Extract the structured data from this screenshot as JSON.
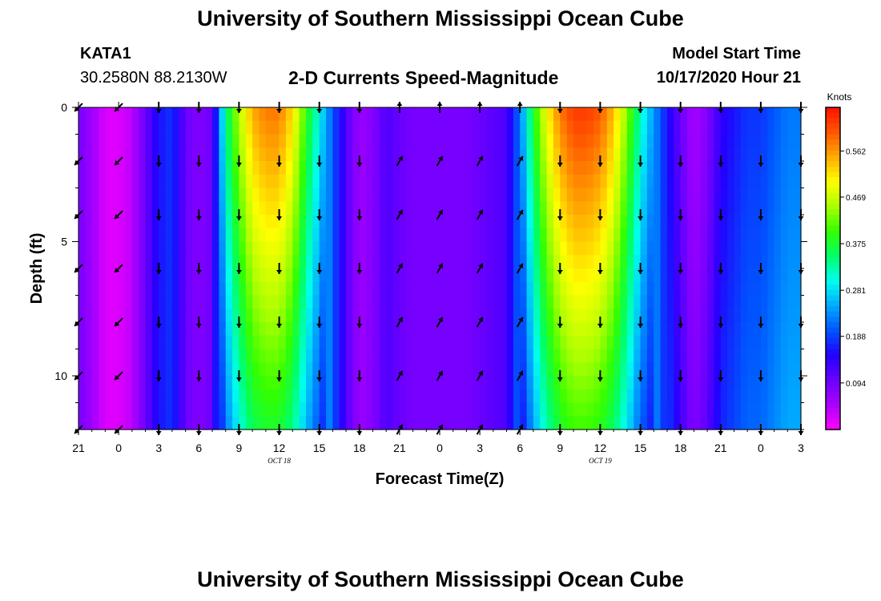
{
  "header": {
    "title": "University of Southern Mississippi Ocean Cube",
    "station_id": "KATA1",
    "station_coords": "30.2580N 88.2130W",
    "product": "2-D Currents Speed-Magnitude",
    "model_start_label": "Model Start Time",
    "model_start_value": "10/17/2020 Hour 21"
  },
  "footer": {
    "title": "University of Southern Mississippi Ocean Cube"
  },
  "chart_data": {
    "type": "heatmap",
    "title": "2-D Currents Speed-Magnitude",
    "xlabel": "Forecast Time(Z)",
    "ylabel": "Depth (ft)",
    "x_hours": [
      0,
      3,
      6,
      9,
      12,
      15,
      18,
      21,
      24,
      27,
      30,
      33,
      36,
      39,
      42,
      45,
      48,
      51,
      54
    ],
    "x_tick_labels": [
      "21",
      "0",
      "3",
      "6",
      "9",
      "12",
      "15",
      "18",
      "21",
      "0",
      "3",
      "6",
      "9",
      "12",
      "15",
      "18",
      "21",
      "0",
      "3"
    ],
    "date_labels": [
      {
        "hour": 15,
        "text": "OCT 18"
      },
      {
        "hour": 39,
        "text": "OCT 19"
      }
    ],
    "y_ticks": [
      0,
      5,
      10
    ],
    "y_tick_labels": [
      "0",
      "5",
      "10"
    ],
    "ylim": [
      0,
      12
    ],
    "colorbar": {
      "title": "Knots",
      "tick_values": [
        0.094,
        0.188,
        0.281,
        0.375,
        0.469,
        0.562
      ],
      "tick_labels": [
        "0.094",
        "0.188",
        "0.281",
        "0.375",
        "0.469",
        "0.562"
      ],
      "range": [
        0,
        0.65
      ],
      "colors": [
        "#ff00ff",
        "#aa00ff",
        "#6a00ff",
        "#2200ff",
        "#0055ff",
        "#00aaff",
        "#00ffee",
        "#00ff66",
        "#33ff00",
        "#aaff00",
        "#ffff00",
        "#ffaa00",
        "#ff5500",
        "#ff1100"
      ]
    },
    "speed_profile_hours": [
      0,
      1,
      2,
      3,
      4,
      5,
      6,
      7,
      8,
      9,
      10,
      11,
      12,
      13,
      14,
      15,
      16,
      17,
      18,
      19,
      20,
      21,
      22,
      23,
      24,
      25,
      26,
      27,
      28,
      29,
      30,
      31,
      32,
      33,
      34,
      35,
      36,
      37,
      38,
      39,
      40,
      41,
      42,
      43,
      44,
      45,
      46,
      47,
      48,
      49,
      50,
      51,
      52,
      53,
      54
    ],
    "speed_profile_knots": [
      0.09,
      0.06,
      0.02,
      0.02,
      0.04,
      0.1,
      0.16,
      0.18,
      0.1,
      0.08,
      0.1,
      0.34,
      0.46,
      0.55,
      0.58,
      0.58,
      0.52,
      0.4,
      0.3,
      0.2,
      0.12,
      0.06,
      0.08,
      0.12,
      0.1,
      0.09,
      0.09,
      0.09,
      0.09,
      0.09,
      0.1,
      0.11,
      0.12,
      0.22,
      0.38,
      0.5,
      0.58,
      0.62,
      0.62,
      0.6,
      0.54,
      0.44,
      0.32,
      0.24,
      0.16,
      0.1,
      0.05,
      0.08,
      0.14,
      0.16,
      0.18,
      0.18,
      0.2,
      0.22,
      0.22
    ],
    "depth_profile_ft": [
      0,
      2,
      4,
      6,
      8,
      10,
      12
    ],
    "vectors": {
      "hours": [
        0,
        3,
        6,
        9,
        12,
        15,
        18,
        21,
        24,
        27,
        30,
        33,
        36,
        39,
        42,
        45,
        48,
        51,
        54
      ],
      "depths_ft": [
        0,
        2,
        4,
        6,
        8,
        10,
        12
      ],
      "directions_deg": [
        [
          225,
          225,
          270,
          270,
          270,
          270,
          270,
          270,
          90,
          90,
          90,
          90,
          270,
          270,
          270,
          270,
          270,
          270,
          270
        ],
        [
          225,
          225,
          270,
          270,
          270,
          270,
          270,
          270,
          60,
          60,
          60,
          60,
          270,
          270,
          270,
          270,
          270,
          270,
          270
        ],
        [
          225,
          225,
          270,
          270,
          270,
          270,
          270,
          270,
          60,
          60,
          60,
          60,
          270,
          270,
          270,
          270,
          270,
          270,
          270
        ],
        [
          225,
          225,
          270,
          270,
          270,
          270,
          270,
          270,
          60,
          60,
          60,
          60,
          270,
          270,
          270,
          270,
          270,
          270,
          270
        ],
        [
          225,
          225,
          270,
          270,
          270,
          270,
          270,
          270,
          60,
          60,
          60,
          60,
          270,
          270,
          270,
          270,
          270,
          270,
          270
        ],
        [
          225,
          225,
          270,
          270,
          270,
          270,
          270,
          270,
          60,
          60,
          60,
          60,
          270,
          270,
          270,
          270,
          270,
          270,
          270
        ],
        [
          225,
          225,
          270,
          270,
          270,
          270,
          270,
          270,
          60,
          60,
          60,
          60,
          270,
          270,
          270,
          270,
          270,
          270,
          270
        ]
      ]
    }
  }
}
